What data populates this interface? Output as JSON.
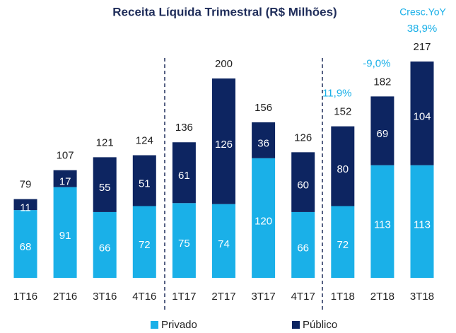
{
  "chart_data": {
    "type": "stacked_bar",
    "title": "Receita Líquida Trimestral (R$ Milhões)",
    "categories": [
      "1T16",
      "2T16",
      "3T16",
      "4T16",
      "1T17",
      "2T17",
      "3T17",
      "4T17",
      "1T18",
      "2T18",
      "3T18"
    ],
    "series": [
      {
        "name": "Privado",
        "color": "#1ab0e8",
        "values": [
          68,
          91,
          66,
          72,
          75,
          74,
          120,
          66,
          72,
          113,
          113
        ]
      },
      {
        "name": "Público",
        "color": "#0d2561",
        "values": [
          11,
          17,
          55,
          51,
          61,
          126,
          36,
          60,
          80,
          69,
          104
        ]
      }
    ],
    "totals": [
      79,
      107,
      121,
      124,
      136,
      200,
      156,
      126,
      152,
      182,
      217
    ],
    "yoy": {
      "label": "Cresc.YoY",
      "color": "#1ab0e8",
      "values": [
        null,
        null,
        null,
        null,
        null,
        null,
        null,
        null,
        11.9,
        -9.0,
        38.9
      ],
      "value_labels": [
        null,
        null,
        null,
        null,
        null,
        null,
        null,
        null,
        "11,9%",
        "-9,0%",
        "38,9%"
      ]
    },
    "legend": "bottom"
  }
}
